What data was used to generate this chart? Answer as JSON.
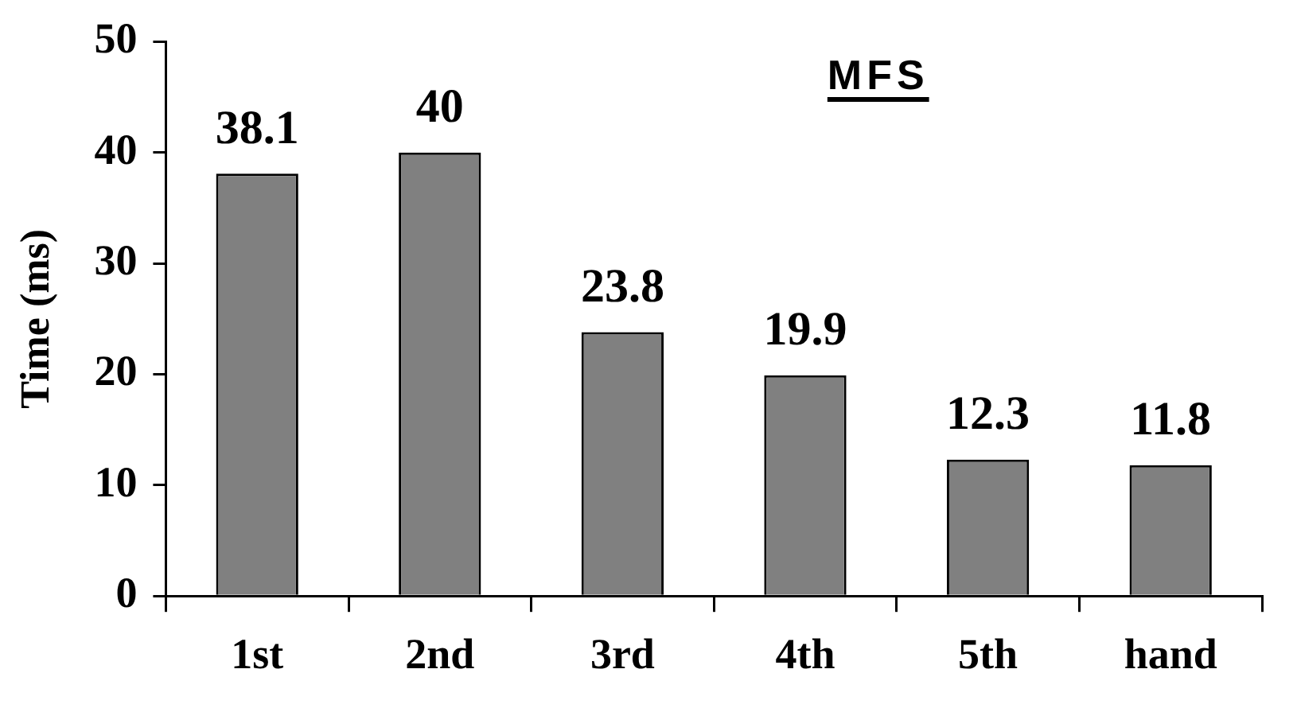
{
  "chart_data": {
    "type": "bar",
    "title": "MFS",
    "ylabel": "Time (ms)",
    "categories": [
      "1st",
      "2nd",
      "3rd",
      "4th",
      "5th",
      "hand"
    ],
    "values": [
      38.1,
      40,
      23.8,
      19.9,
      12.3,
      11.8
    ],
    "color": "#808080",
    "ylim": [
      0,
      50
    ],
    "yticks": [
      0,
      10,
      20,
      30,
      40,
      50
    ],
    "data_labels": true,
    "grid": false,
    "legend": false
  }
}
